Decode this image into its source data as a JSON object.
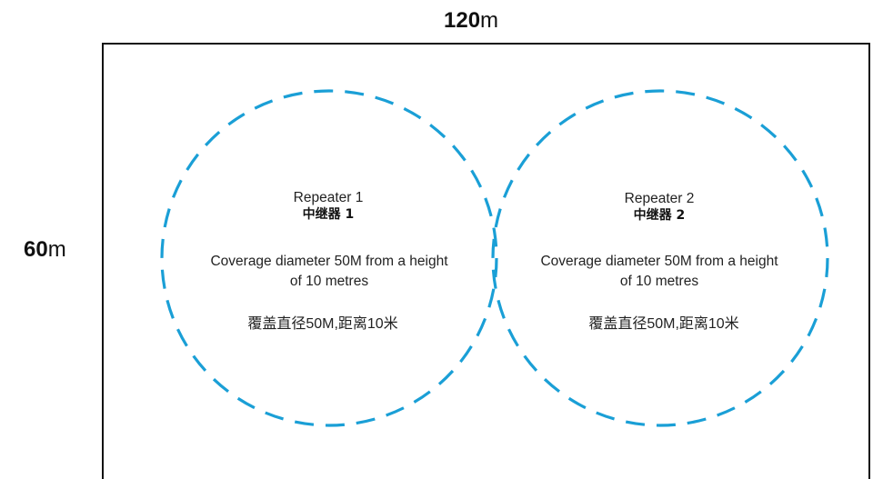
{
  "dimensions": {
    "width_value": "120",
    "width_unit": "m",
    "height_value": "60",
    "height_unit": "m"
  },
  "colors": {
    "circle_stroke": "#1a9fd6",
    "border": "#111111"
  },
  "repeaters": [
    {
      "name": "Repeater 1",
      "name_cn": "中继器 1",
      "desc_line1": "Coverage diameter 50M from a height",
      "desc_line2": "of 10 metres",
      "desc_cn": "覆盖直径50M,距离10米"
    },
    {
      "name": "Repeater  2",
      "name_cn": "中继器 2",
      "desc_line1": "Coverage diameter 50M from a height",
      "desc_line2": "of 10 metres",
      "desc_cn": "覆盖直径50M,距离10米"
    }
  ]
}
